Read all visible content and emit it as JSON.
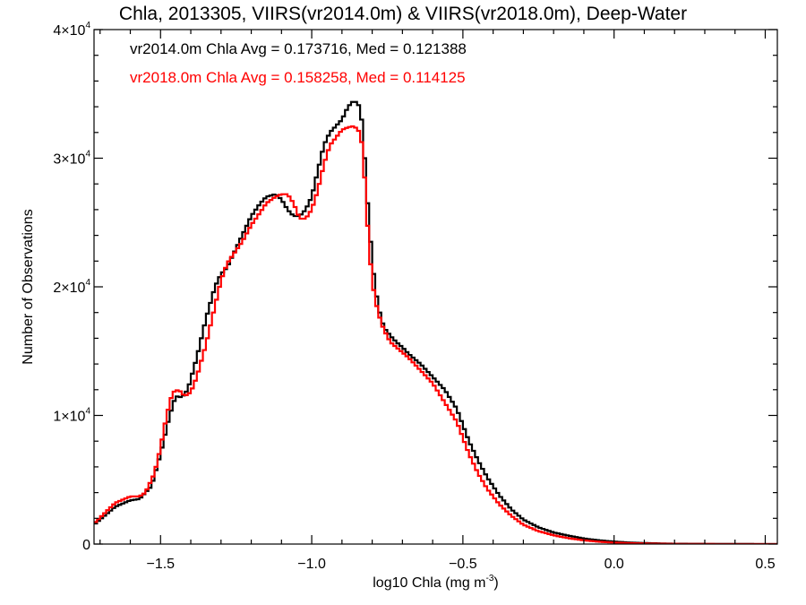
{
  "chart_data": {
    "type": "line",
    "title": "Chla, 2013305, VIIRS(vr2014.0m) & VIIRS(vr2018.0m), Deep-Water",
    "xlabel": "log10 Chla (mg m",
    "xlabel_sup": "-3",
    "xlabel_tail": ")",
    "ylabel": "Number of Observations",
    "xlim": [
      -1.72,
      0.54
    ],
    "ylim": [
      0,
      40000
    ],
    "xticks": [
      -1.5,
      -1.0,
      -0.5,
      0.0,
      0.5
    ],
    "xtick_labels": [
      "−1.5",
      "−1.0",
      "−0.5",
      "0.0",
      "0.5"
    ],
    "yticks": [
      0,
      10000,
      20000,
      30000,
      40000
    ],
    "ytick_labels": [
      {
        "base": "0",
        "exp": ""
      },
      {
        "base": "1×10",
        "exp": "4"
      },
      {
        "base": "2×10",
        "exp": "4"
      },
      {
        "base": "3×10",
        "exp": "4"
      },
      {
        "base": "4×10",
        "exp": "4"
      }
    ],
    "annotations": [
      {
        "text": "vr2014.0m Chla Avg = 0.173716, Med = 0.121388",
        "color": "#000000"
      },
      {
        "text": "vr2018.0m Chla Avg = 0.158258, Med = 0.114125",
        "color": "#ff0000"
      }
    ],
    "series": [
      {
        "color": "#000000",
        "x": [
          -1.72,
          -1.65,
          -1.6,
          -1.57,
          -1.53,
          -1.5,
          -1.47,
          -1.45,
          -1.43,
          -1.41,
          -1.38,
          -1.35,
          -1.32,
          -1.3,
          -1.28,
          -1.26,
          -1.23,
          -1.2,
          -1.17,
          -1.15,
          -1.12,
          -1.1,
          -1.08,
          -1.06,
          -1.04,
          -1.02,
          -1.0,
          -0.98,
          -0.96,
          -0.94,
          -0.92,
          -0.9,
          -0.88,
          -0.86,
          -0.84,
          -0.83,
          -0.82,
          -0.81,
          -0.8,
          -0.79,
          -0.78,
          -0.77,
          -0.76,
          -0.74,
          -0.72,
          -0.7,
          -0.68,
          -0.66,
          -0.64,
          -0.6,
          -0.56,
          -0.52,
          -0.48,
          -0.45,
          -0.42,
          -0.38,
          -0.34,
          -0.3,
          -0.25,
          -0.2,
          -0.15,
          -0.1,
          -0.05,
          0.0,
          0.05,
          0.1,
          0.15,
          0.2,
          0.3,
          0.4,
          0.54
        ],
        "y": [
          1500,
          2900,
          3400,
          3500,
          4500,
          7000,
          10000,
          11500,
          11400,
          12000,
          14500,
          17500,
          20000,
          21000,
          21500,
          22500,
          24000,
          25500,
          26500,
          27000,
          27200,
          26800,
          26000,
          25500,
          25500,
          26000,
          27000,
          29000,
          31000,
          32000,
          32500,
          33000,
          34000,
          34500,
          34000,
          32000,
          28000,
          25000,
          22000,
          20000,
          18500,
          17500,
          16800,
          16200,
          15700,
          15300,
          14800,
          14400,
          14000,
          13000,
          12000,
          10500,
          8000,
          6500,
          5200,
          3800,
          2700,
          1900,
          1300,
          900,
          650,
          430,
          290,
          190,
          120,
          80,
          50,
          30,
          15,
          8,
          3
        ]
      },
      {
        "color": "#ff0000",
        "x": [
          -1.72,
          -1.65,
          -1.6,
          -1.57,
          -1.55,
          -1.52,
          -1.5,
          -1.48,
          -1.46,
          -1.44,
          -1.42,
          -1.4,
          -1.38,
          -1.35,
          -1.32,
          -1.3,
          -1.28,
          -1.26,
          -1.23,
          -1.2,
          -1.17,
          -1.15,
          -1.12,
          -1.1,
          -1.08,
          -1.06,
          -1.04,
          -1.02,
          -1.0,
          -0.98,
          -0.96,
          -0.94,
          -0.92,
          -0.9,
          -0.88,
          -0.86,
          -0.84,
          -0.83,
          -0.82,
          -0.81,
          -0.8,
          -0.79,
          -0.78,
          -0.77,
          -0.76,
          -0.74,
          -0.72,
          -0.7,
          -0.68,
          -0.66,
          -0.64,
          -0.6,
          -0.56,
          -0.52,
          -0.48,
          -0.45,
          -0.42,
          -0.38,
          -0.34,
          -0.3,
          -0.25,
          -0.2,
          -0.15,
          -0.1,
          -0.05,
          0.0,
          0.05,
          0.1,
          0.15,
          0.2,
          0.3,
          0.4,
          0.54
        ],
        "y": [
          1600,
          3200,
          3700,
          3700,
          4000,
          5500,
          7500,
          10000,
          11800,
          12000,
          11500,
          11800,
          13000,
          15500,
          18500,
          20500,
          21800,
          22500,
          23500,
          24800,
          25800,
          26500,
          27000,
          27200,
          27200,
          26500,
          25300,
          25300,
          26000,
          27500,
          29500,
          31000,
          31600,
          32200,
          32400,
          32500,
          32000,
          30500,
          26500,
          23000,
          20500,
          19000,
          18000,
          17200,
          16600,
          15700,
          15300,
          14900,
          14500,
          14000,
          13500,
          12500,
          11000,
          9500,
          7000,
          5500,
          4300,
          3100,
          2200,
          1500,
          1000,
          680,
          450,
          290,
          180,
          110,
          70,
          45,
          28,
          16,
          7,
          3,
          1
        ]
      }
    ]
  }
}
